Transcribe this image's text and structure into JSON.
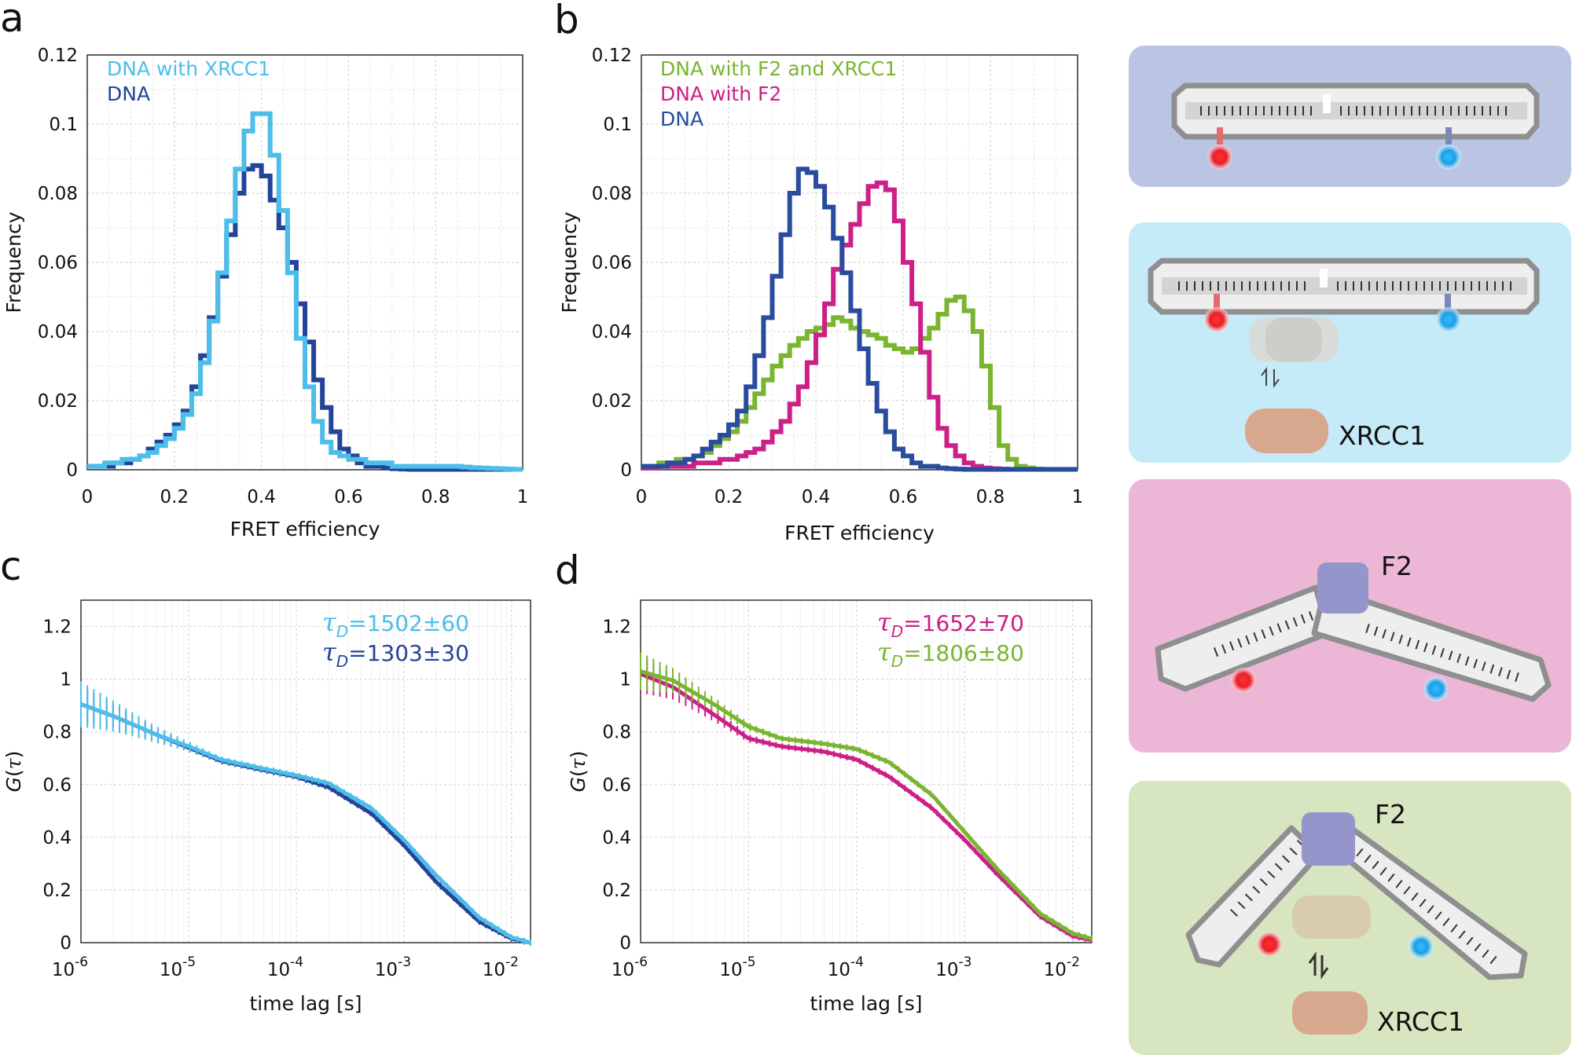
{
  "colors": {
    "light_blue": "#4dbde9",
    "dark_blue": "#24449a",
    "mid_blue": "#2a4c9e",
    "magenta": "#cc2088",
    "green": "#7ab532",
    "red_dye": "#e8202a",
    "blue_dye": "#1aa0e6",
    "panel_e1": "#b9c5e2",
    "panel_e2": "#c6ebf8",
    "panel_e3": "#ecb7d6",
    "panel_e4": "#d7e6c1",
    "protein_f2": "#9595cc",
    "protein_xrcc1": "#d7a88d"
  },
  "panels": {
    "a": {
      "letter": "a"
    },
    "b": {
      "letter": "b"
    },
    "c": {
      "letter": "c"
    },
    "d": {
      "letter": "d"
    }
  },
  "schematics": {
    "e2_label": "XRCC1",
    "e3_label": "F2",
    "e4_label_f2": "F2",
    "e4_label_xrcc1": "XRCC1",
    "equilibrium_icon": "equilibrium-arrows-icon",
    "dna_icon": "dna-duplex-icon",
    "red_dye_icon": "acceptor-dye-icon",
    "blue_dye_icon": "donor-dye-icon"
  },
  "chart_data": [
    {
      "id": "a",
      "type": "line",
      "title": "",
      "xlabel": "FRET efficiency",
      "ylabel": "Frequency",
      "xlim": [
        0,
        1
      ],
      "ylim": [
        0,
        0.12
      ],
      "x_ticks": [
        "0",
        "0.2",
        "0.4",
        "0.6",
        "0.8",
        "1"
      ],
      "y_ticks": [
        "0",
        "0.02",
        "0.04",
        "0.06",
        "0.08",
        "0.1",
        "0.12"
      ],
      "grid": true,
      "legend_position": "top-left",
      "bin_width": 0.02,
      "series": [
        {
          "name": "DNA",
          "color": "#24449a",
          "values": [
            0.001,
            0.001,
            0.001,
            0.002,
            0.002,
            0.003,
            0.004,
            0.006,
            0.008,
            0.01,
            0.013,
            0.017,
            0.024,
            0.033,
            0.044,
            0.056,
            0.068,
            0.08,
            0.087,
            0.088,
            0.085,
            0.078,
            0.07,
            0.06,
            0.048,
            0.037,
            0.026,
            0.018,
            0.011,
            0.006,
            0.004,
            0.002,
            0.001,
            0.001,
            0.0005,
            0.0003,
            0.0002,
            0.0001,
            0.0001,
            0.0001,
            0.0001,
            0.0001,
            0.0001,
            0.0001,
            0.0001,
            0.0001,
            0.0001,
            0.0001,
            0.0001,
            0.0001
          ]
        },
        {
          "name": "DNA with XRCC1",
          "color": "#4dbde9",
          "values": [
            0.001,
            0.001,
            0.002,
            0.002,
            0.003,
            0.003,
            0.004,
            0.005,
            0.007,
            0.009,
            0.012,
            0.016,
            0.022,
            0.031,
            0.043,
            0.057,
            0.072,
            0.087,
            0.098,
            0.103,
            0.103,
            0.091,
            0.075,
            0.057,
            0.038,
            0.024,
            0.014,
            0.008,
            0.005,
            0.004,
            0.003,
            0.003,
            0.002,
            0.002,
            0.002,
            0.001,
            0.001,
            0.001,
            0.001,
            0.001,
            0.001,
            0.001,
            0.001,
            0.0008,
            0.0006,
            0.0005,
            0.0004,
            0.0003,
            0.0002,
            0.0001
          ]
        }
      ]
    },
    {
      "id": "b",
      "type": "line",
      "title": "",
      "xlabel": "FRET efficiency",
      "ylabel": "Frequency",
      "xlim": [
        0,
        1
      ],
      "ylim": [
        0,
        0.12
      ],
      "x_ticks": [
        "0",
        "0.2",
        "0.4",
        "0.6",
        "0.8",
        "1"
      ],
      "y_ticks": [
        "0",
        "0.02",
        "0.04",
        "0.06",
        "0.08",
        "0.1",
        "0.12"
      ],
      "grid": true,
      "legend_position": "top-left",
      "bin_width": 0.02,
      "series": [
        {
          "name": "DNA with F2 and XRCC1",
          "color": "#7ab532",
          "values": [
            0.001,
            0.001,
            0.002,
            0.002,
            0.003,
            0.003,
            0.004,
            0.005,
            0.007,
            0.009,
            0.011,
            0.014,
            0.018,
            0.022,
            0.026,
            0.03,
            0.033,
            0.036,
            0.038,
            0.04,
            0.041,
            0.042,
            0.044,
            0.043,
            0.041,
            0.04,
            0.039,
            0.038,
            0.036,
            0.035,
            0.034,
            0.035,
            0.038,
            0.041,
            0.045,
            0.049,
            0.05,
            0.046,
            0.04,
            0.03,
            0.018,
            0.007,
            0.003,
            0.001,
            0.0005,
            0.0002,
            0.0001,
            0.0001,
            0.0001,
            0.0001
          ]
        },
        {
          "name": "DNA with F2",
          "color": "#cc2088",
          "values": [
            0.0005,
            0.0005,
            0.001,
            0.001,
            0.001,
            0.001,
            0.002,
            0.002,
            0.002,
            0.003,
            0.003,
            0.004,
            0.005,
            0.006,
            0.008,
            0.011,
            0.014,
            0.019,
            0.024,
            0.031,
            0.039,
            0.048,
            0.058,
            0.065,
            0.071,
            0.077,
            0.082,
            0.083,
            0.081,
            0.072,
            0.06,
            0.048,
            0.034,
            0.021,
            0.012,
            0.007,
            0.004,
            0.002,
            0.001,
            0.0005,
            0.0003,
            0.0002,
            0.0001,
            0.0001,
            0.0001,
            0.0001,
            0.0001,
            0.0001,
            0.0001,
            0.0001
          ]
        },
        {
          "name": "DNA",
          "color": "#2a4c9e",
          "values": [
            0.001,
            0.001,
            0.001,
            0.002,
            0.002,
            0.003,
            0.004,
            0.006,
            0.008,
            0.01,
            0.013,
            0.017,
            0.024,
            0.033,
            0.044,
            0.056,
            0.068,
            0.08,
            0.087,
            0.086,
            0.082,
            0.076,
            0.067,
            0.057,
            0.046,
            0.035,
            0.025,
            0.017,
            0.011,
            0.006,
            0.004,
            0.002,
            0.001,
            0.001,
            0.0005,
            0.0003,
            0.0002,
            0.0001,
            0.0001,
            0.0001,
            0.0001,
            0.0001,
            0.0001,
            0.0001,
            0.0001,
            0.0001,
            0.0001,
            0.0001,
            0.0001,
            0.0001
          ]
        }
      ]
    },
    {
      "id": "c",
      "type": "line",
      "title": "",
      "xlabel": "time lag [s]",
      "ylabel": "G(τ)",
      "x_scale": "log",
      "xlim": [
        1e-06,
        0.015
      ],
      "ylim": [
        0,
        1.3
      ],
      "x_ticks": [
        "10-6",
        "10-5",
        "10-4",
        "10-3",
        "10-2"
      ],
      "y_ticks": [
        "0",
        "0.2",
        "0.4",
        "0.6",
        "0.8",
        "1",
        "1.2"
      ],
      "grid": true,
      "annotations": [
        {
          "text": "τD=1502±60",
          "color": "#4dbde9"
        },
        {
          "text": "τD=1303±30",
          "color": "#24449a"
        }
      ],
      "series": [
        {
          "name": "",
          "color": "#24449a",
          "points": [
            [
              1e-06,
              0.905
            ],
            [
              2e-06,
              0.86
            ],
            [
              5e-06,
              0.79
            ],
            [
              1e-05,
              0.74
            ],
            [
              2e-05,
              0.69
            ],
            [
              5e-05,
              0.655
            ],
            [
              0.0001,
              0.63
            ],
            [
              0.0002,
              0.59
            ],
            [
              0.0005,
              0.49
            ],
            [
              0.001,
              0.37
            ],
            [
              0.002,
              0.23
            ],
            [
              0.005,
              0.08
            ],
            [
              0.01,
              0.015
            ],
            [
              0.015,
              0.0
            ]
          ]
        },
        {
          "name": "",
          "color": "#4dbde9",
          "points": [
            [
              1e-06,
              0.905
            ],
            [
              2e-06,
              0.86
            ],
            [
              5e-06,
              0.79
            ],
            [
              1e-05,
              0.745
            ],
            [
              2e-05,
              0.695
            ],
            [
              5e-05,
              0.66
            ],
            [
              0.0001,
              0.635
            ],
            [
              0.0002,
              0.605
            ],
            [
              0.0005,
              0.51
            ],
            [
              0.001,
              0.39
            ],
            [
              0.002,
              0.255
            ],
            [
              0.005,
              0.095
            ],
            [
              0.01,
              0.02
            ],
            [
              0.015,
              0.0
            ]
          ]
        }
      ]
    },
    {
      "id": "d",
      "type": "line",
      "title": "",
      "xlabel": "time lag [s]",
      "ylabel": "G(τ)",
      "x_scale": "log",
      "xlim": [
        1e-06,
        0.015
      ],
      "ylim": [
        0,
        1.3
      ],
      "x_ticks": [
        "10-6",
        "10-5",
        "10-4",
        "10-3",
        "10-2"
      ],
      "y_ticks": [
        "0",
        "0.2",
        "0.4",
        "0.6",
        "0.8",
        "1",
        "1.2"
      ],
      "grid": true,
      "annotations": [
        {
          "text": "τD=1652±70",
          "color": "#cc2088"
        },
        {
          "text": "τD=1806±80",
          "color": "#7ab532"
        }
      ],
      "series": [
        {
          "name": "",
          "color": "#cc2088",
          "points": [
            [
              1e-06,
              1.02
            ],
            [
              2e-06,
              0.97
            ],
            [
              5e-06,
              0.86
            ],
            [
              1e-05,
              0.775
            ],
            [
              2e-05,
              0.745
            ],
            [
              5e-05,
              0.725
            ],
            [
              0.0001,
              0.695
            ],
            [
              0.0002,
              0.63
            ],
            [
              0.0005,
              0.51
            ],
            [
              0.001,
              0.39
            ],
            [
              0.002,
              0.26
            ],
            [
              0.005,
              0.1
            ],
            [
              0.01,
              0.025
            ],
            [
              0.015,
              0.01
            ]
          ]
        },
        {
          "name": "",
          "color": "#7ab532",
          "points": [
            [
              1e-06,
              1.03
            ],
            [
              2e-06,
              0.995
            ],
            [
              5e-06,
              0.9
            ],
            [
              1e-05,
              0.82
            ],
            [
              2e-05,
              0.775
            ],
            [
              5e-05,
              0.755
            ],
            [
              0.0001,
              0.735
            ],
            [
              0.0002,
              0.685
            ],
            [
              0.0005,
              0.56
            ],
            [
              0.001,
              0.42
            ],
            [
              0.002,
              0.28
            ],
            [
              0.005,
              0.11
            ],
            [
              0.01,
              0.035
            ],
            [
              0.015,
              0.015
            ]
          ]
        }
      ]
    }
  ]
}
